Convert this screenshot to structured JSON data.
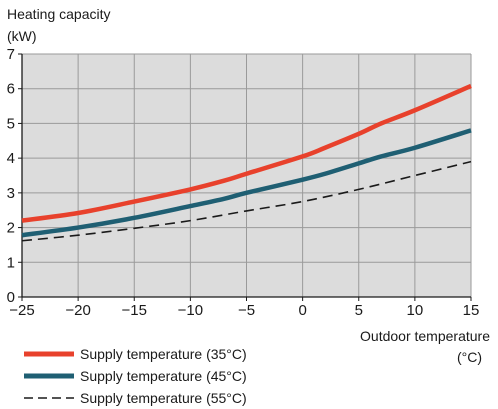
{
  "chart_data": {
    "type": "line",
    "ylabel_line1": "Heating capacity",
    "ylabel_line2": "(kW)",
    "xlabel_line1": "Outdoor temperature",
    "xlabel_line2": "(°C)",
    "xlim": [
      -25,
      15
    ],
    "ylim": [
      0,
      7
    ],
    "xticks": [
      -25,
      -20,
      -15,
      -10,
      -5,
      0,
      5,
      10,
      15
    ],
    "yticks": [
      0,
      1,
      2,
      3,
      4,
      5,
      6,
      7
    ],
    "grid": true,
    "legend_position": "bottom-left",
    "series": [
      {
        "name": "Supply temperature (35°C)",
        "color": "#e8412c",
        "style": "solid",
        "x": [
          -25,
          -20,
          -15,
          -10,
          -7,
          -5,
          0,
          2,
          5,
          7,
          10,
          15
        ],
        "y": [
          2.2,
          2.42,
          2.75,
          3.1,
          3.35,
          3.55,
          4.05,
          4.3,
          4.7,
          5.0,
          5.38,
          6.08
        ]
      },
      {
        "name": "Supply temperature (45°C)",
        "color": "#1f5f73",
        "style": "solid",
        "x": [
          -25,
          -20,
          -15,
          -10,
          -7,
          -5,
          0,
          2,
          5,
          7,
          10,
          15
        ],
        "y": [
          1.78,
          2.0,
          2.28,
          2.62,
          2.83,
          3.0,
          3.38,
          3.55,
          3.85,
          4.05,
          4.3,
          4.8
        ]
      },
      {
        "name": "Supply temperature (55°C)",
        "color": "#1a1a1a",
        "style": "dashed",
        "x": [
          -25,
          -20,
          -15,
          -10,
          -5,
          0,
          5,
          10,
          15
        ],
        "y": [
          1.62,
          1.78,
          1.98,
          2.2,
          2.48,
          2.75,
          3.1,
          3.5,
          3.9
        ]
      }
    ]
  }
}
